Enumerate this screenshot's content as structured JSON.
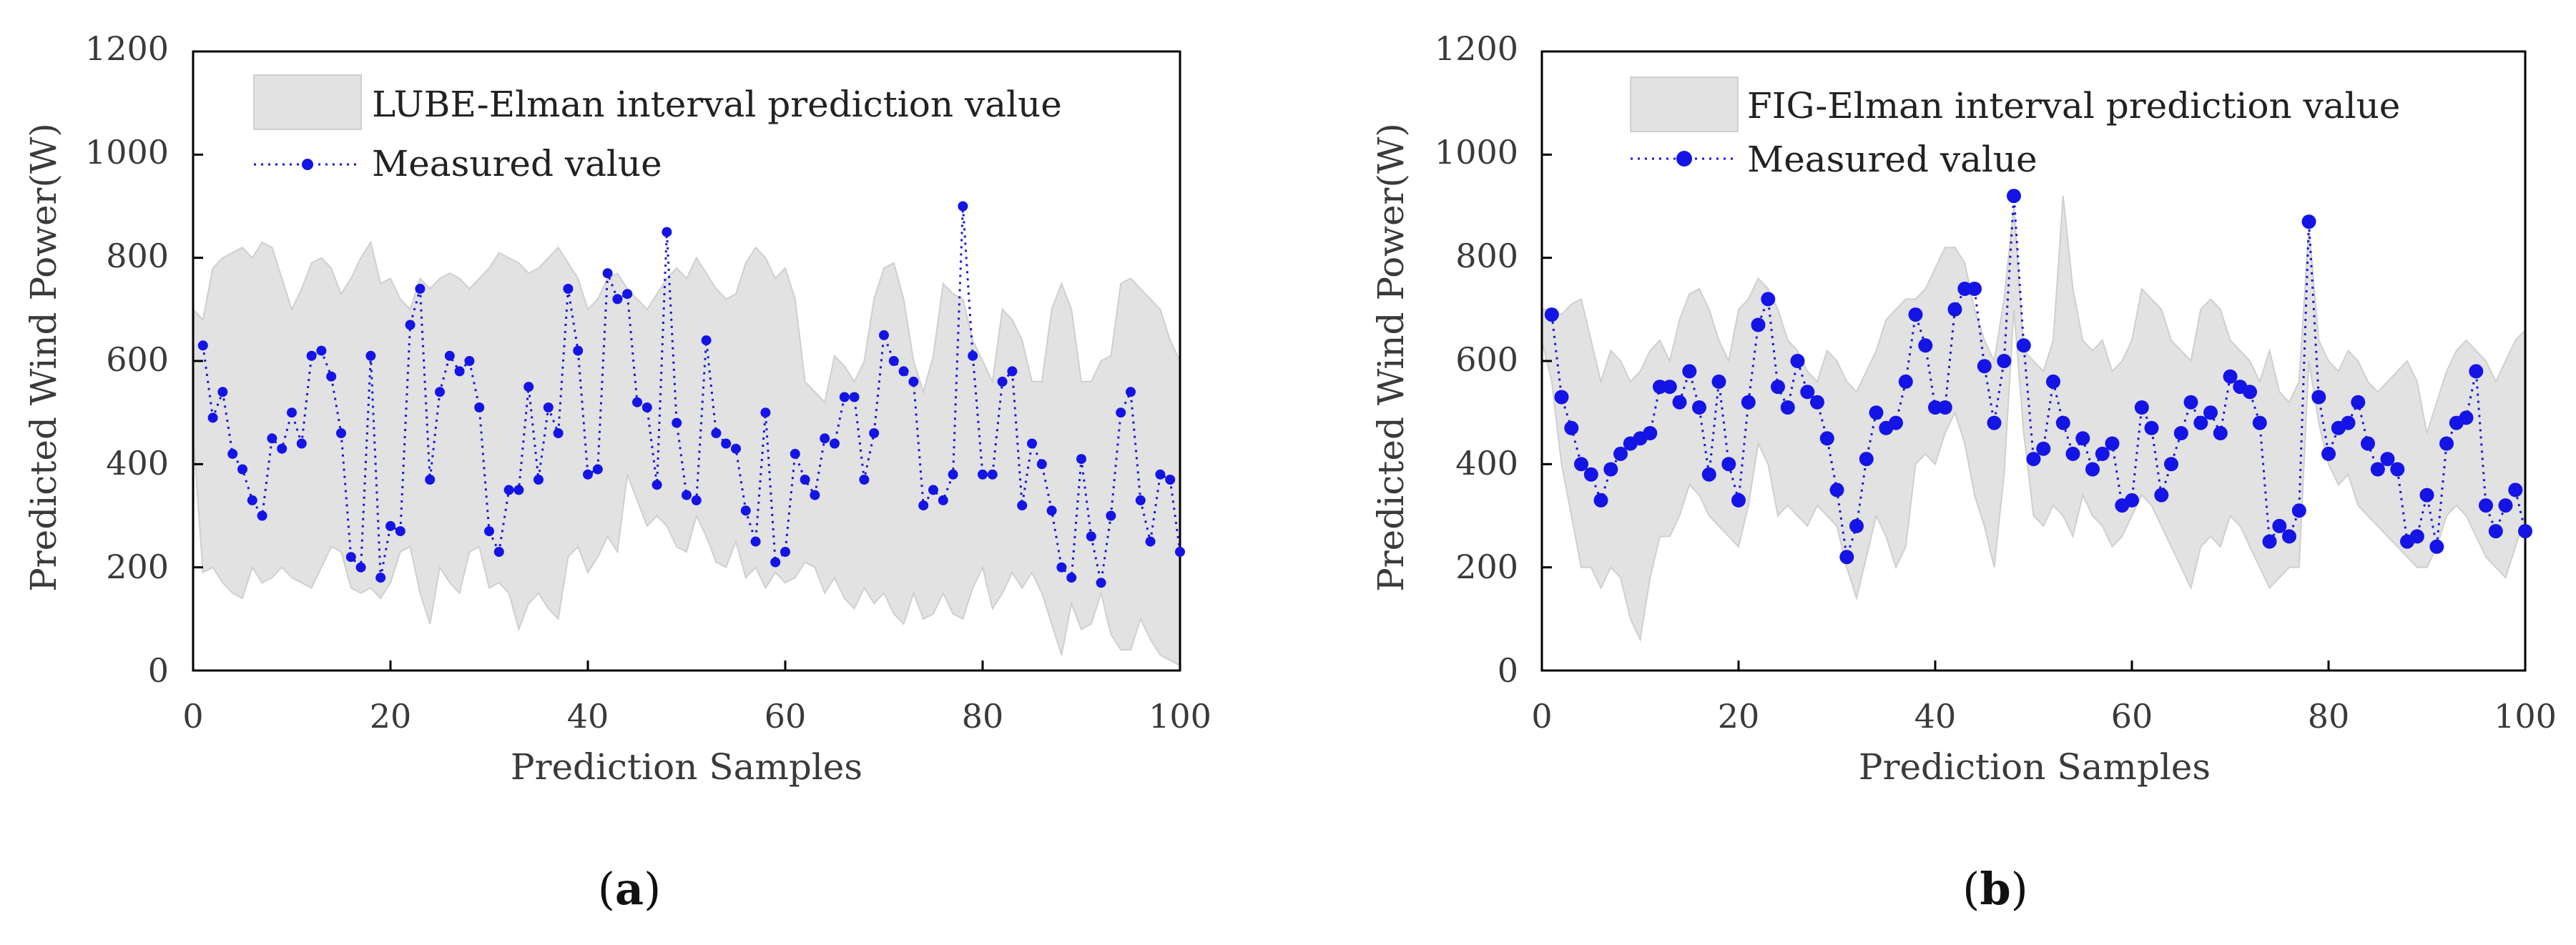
{
  "figure": {
    "panels": [
      {
        "id": "a",
        "label_open": "(",
        "label_letter": "a",
        "label_close": ")"
      },
      {
        "id": "b",
        "label_open": "(",
        "label_letter": "b",
        "label_close": ")"
      }
    ]
  },
  "colors": {
    "band": "#e2e2e2",
    "band_edge": "#cfcfcf",
    "measured": "#1414e6",
    "axis": "#000000"
  },
  "chart_data": [
    {
      "type": "area",
      "xlabel": "Prediction Samples",
      "ylabel": "Predicted Wind Power(W)",
      "xlim": [
        0,
        100
      ],
      "ylim": [
        0,
        1200
      ],
      "xticks": [
        0,
        20,
        40,
        60,
        80,
        100
      ],
      "yticks": [
        0,
        200,
        400,
        600,
        800,
        1000,
        1200
      ],
      "legend_position": "top",
      "series": [
        {
          "name": "LUBE-Elman interval prediction value",
          "kind": "band",
          "x": [
            0,
            1,
            2,
            3,
            4,
            5,
            6,
            7,
            8,
            9,
            10,
            11,
            12,
            13,
            14,
            15,
            16,
            17,
            18,
            19,
            20,
            21,
            22,
            23,
            24,
            25,
            26,
            27,
            28,
            29,
            30,
            31,
            32,
            33,
            34,
            35,
            36,
            37,
            38,
            39,
            40,
            41,
            42,
            43,
            44,
            45,
            46,
            47,
            48,
            49,
            50,
            51,
            52,
            53,
            54,
            55,
            56,
            57,
            58,
            59,
            60,
            61,
            62,
            63,
            64,
            65,
            66,
            67,
            68,
            69,
            70,
            71,
            72,
            73,
            74,
            75,
            76,
            77,
            78,
            79,
            80,
            81,
            82,
            83,
            84,
            85,
            86,
            87,
            88,
            89,
            90,
            91,
            92,
            93,
            94,
            95,
            96,
            97,
            98,
            99,
            100
          ],
          "upper": [
            700,
            680,
            780,
            800,
            810,
            820,
            800,
            830,
            820,
            760,
            700,
            740,
            790,
            800,
            780,
            730,
            760,
            800,
            830,
            750,
            760,
            720,
            700,
            760,
            740,
            760,
            770,
            760,
            740,
            760,
            780,
            810,
            800,
            790,
            770,
            780,
            800,
            820,
            790,
            760,
            700,
            720,
            760,
            770,
            740,
            720,
            700,
            730,
            760,
            780,
            760,
            800,
            770,
            740,
            720,
            730,
            790,
            820,
            800,
            760,
            780,
            720,
            560,
            540,
            520,
            610,
            590,
            560,
            600,
            720,
            780,
            790,
            720,
            600,
            540,
            610,
            750,
            730,
            720,
            640,
            600,
            560,
            700,
            680,
            640,
            560,
            560,
            700,
            750,
            700,
            560,
            560,
            600,
            610,
            750,
            760,
            740,
            720,
            700,
            640,
            600
          ],
          "lower": [
            460,
            190,
            200,
            170,
            150,
            140,
            200,
            170,
            180,
            200,
            180,
            170,
            160,
            200,
            240,
            230,
            160,
            150,
            160,
            140,
            170,
            230,
            240,
            150,
            90,
            200,
            170,
            150,
            230,
            240,
            160,
            170,
            150,
            80,
            130,
            150,
            120,
            100,
            220,
            240,
            190,
            220,
            260,
            230,
            380,
            330,
            280,
            300,
            280,
            240,
            230,
            300,
            260,
            210,
            200,
            250,
            180,
            200,
            160,
            190,
            170,
            180,
            210,
            200,
            150,
            180,
            140,
            120,
            160,
            130,
            150,
            110,
            90,
            150,
            100,
            110,
            150,
            110,
            100,
            160,
            200,
            120,
            150,
            190,
            160,
            190,
            150,
            90,
            30,
            130,
            80,
            90,
            150,
            70,
            40,
            40,
            100,
            60,
            30,
            20,
            10
          ]
        },
        {
          "name": "Measured value",
          "kind": "dotted-line-markers",
          "x": [
            1,
            2,
            3,
            4,
            5,
            6,
            7,
            8,
            9,
            10,
            11,
            12,
            13,
            14,
            15,
            16,
            17,
            18,
            19,
            20,
            21,
            22,
            23,
            24,
            25,
            26,
            27,
            28,
            29,
            30,
            31,
            32,
            33,
            34,
            35,
            36,
            37,
            38,
            39,
            40,
            41,
            42,
            43,
            44,
            45,
            46,
            47,
            48,
            49,
            50,
            51,
            52,
            53,
            54,
            55,
            56,
            57,
            58,
            59,
            60,
            61,
            62,
            63,
            64,
            65,
            66,
            67,
            68,
            69,
            70,
            71,
            72,
            73,
            74,
            75,
            76,
            77,
            78,
            79,
            80,
            81,
            82,
            83,
            84,
            85,
            86,
            87,
            88,
            89,
            90,
            91,
            92,
            93,
            94,
            95,
            96,
            97,
            98,
            99,
            100
          ],
          "values": [
            630,
            490,
            540,
            420,
            390,
            330,
            300,
            450,
            430,
            500,
            440,
            610,
            620,
            570,
            460,
            220,
            200,
            610,
            180,
            280,
            270,
            670,
            740,
            370,
            540,
            610,
            580,
            600,
            510,
            270,
            230,
            350,
            350,
            550,
            370,
            510,
            460,
            740,
            620,
            380,
            390,
            770,
            720,
            730,
            520,
            510,
            360,
            850,
            480,
            340,
            330,
            640,
            460,
            440,
            430,
            310,
            250,
            500,
            210,
            230,
            420,
            370,
            340,
            450,
            440,
            530,
            530,
            370,
            460,
            650,
            600,
            580,
            560,
            320,
            350,
            330,
            380,
            900,
            610,
            380,
            380,
            560,
            580,
            320,
            440,
            400,
            310,
            200,
            180,
            410,
            260,
            170,
            300,
            500,
            540,
            330,
            250,
            380,
            370,
            230
          ]
        }
      ]
    },
    {
      "type": "area",
      "xlabel": "Prediction Samples",
      "ylabel": "Predicted Wind Power(W)",
      "xlim": [
        0,
        100
      ],
      "ylim": [
        0,
        1200
      ],
      "xticks": [
        0,
        20,
        40,
        60,
        80,
        100
      ],
      "yticks": [
        0,
        200,
        400,
        600,
        800,
        1000,
        1200
      ],
      "legend_position": "top",
      "series": [
        {
          "name": "FIG-Elman interval prediction value",
          "kind": "band",
          "x": [
            0,
            1,
            2,
            3,
            4,
            5,
            6,
            7,
            8,
            9,
            10,
            11,
            12,
            13,
            14,
            15,
            16,
            17,
            18,
            19,
            20,
            21,
            22,
            23,
            24,
            25,
            26,
            27,
            28,
            29,
            30,
            31,
            32,
            33,
            34,
            35,
            36,
            37,
            38,
            39,
            40,
            41,
            42,
            43,
            44,
            45,
            46,
            47,
            48,
            49,
            50,
            51,
            52,
            53,
            54,
            55,
            56,
            57,
            58,
            59,
            60,
            61,
            62,
            63,
            64,
            65,
            66,
            67,
            68,
            69,
            70,
            71,
            72,
            73,
            74,
            75,
            76,
            77,
            78,
            79,
            80,
            81,
            82,
            83,
            84,
            85,
            86,
            87,
            88,
            89,
            90,
            91,
            92,
            93,
            94,
            95,
            96,
            97,
            98,
            99,
            100
          ],
          "upper": [
            700,
            700,
            690,
            710,
            720,
            640,
            560,
            620,
            600,
            560,
            580,
            620,
            640,
            600,
            680,
            730,
            740,
            700,
            640,
            600,
            700,
            720,
            760,
            740,
            700,
            640,
            620,
            580,
            560,
            620,
            600,
            560,
            540,
            580,
            620,
            680,
            700,
            720,
            720,
            740,
            780,
            820,
            820,
            790,
            700,
            640,
            600,
            720,
            900,
            620,
            600,
            580,
            640,
            920,
            740,
            640,
            620,
            640,
            580,
            600,
            640,
            740,
            720,
            700,
            640,
            620,
            600,
            700,
            720,
            700,
            640,
            620,
            600,
            560,
            620,
            540,
            520,
            560,
            860,
            640,
            600,
            580,
            620,
            600,
            560,
            540,
            560,
            580,
            600,
            560,
            460,
            520,
            580,
            620,
            640,
            620,
            600,
            560,
            600,
            640,
            660
          ],
          "lower": [
            640,
            560,
            400,
            300,
            200,
            200,
            160,
            200,
            180,
            100,
            60,
            180,
            260,
            260,
            300,
            360,
            340,
            300,
            280,
            260,
            240,
            320,
            440,
            400,
            300,
            320,
            300,
            280,
            320,
            300,
            280,
            200,
            140,
            220,
            300,
            260,
            200,
            240,
            400,
            420,
            400,
            460,
            500,
            440,
            340,
            280,
            200,
            380,
            700,
            460,
            300,
            280,
            320,
            300,
            260,
            340,
            300,
            280,
            240,
            260,
            300,
            340,
            320,
            280,
            240,
            200,
            160,
            240,
            260,
            240,
            300,
            280,
            240,
            200,
            160,
            180,
            200,
            200,
            600,
            480,
            400,
            360,
            380,
            320,
            300,
            280,
            260,
            240,
            220,
            200,
            200,
            240,
            300,
            320,
            300,
            260,
            220,
            200,
            180,
            240,
            300
          ]
        },
        {
          "name": "Measured value",
          "kind": "dotted-line-markers",
          "x": [
            1,
            2,
            3,
            4,
            5,
            6,
            7,
            8,
            9,
            10,
            11,
            12,
            13,
            14,
            15,
            16,
            17,
            18,
            19,
            20,
            21,
            22,
            23,
            24,
            25,
            26,
            27,
            28,
            29,
            30,
            31,
            32,
            33,
            34,
            35,
            36,
            37,
            38,
            39,
            40,
            41,
            42,
            43,
            44,
            45,
            46,
            47,
            48,
            49,
            50,
            51,
            52,
            53,
            54,
            55,
            56,
            57,
            58,
            59,
            60,
            61,
            62,
            63,
            64,
            65,
            66,
            67,
            68,
            69,
            70,
            71,
            72,
            73,
            74,
            75,
            76,
            77,
            78,
            79,
            80,
            81,
            82,
            83,
            84,
            85,
            86,
            87,
            88,
            89,
            90,
            91,
            92,
            93,
            94,
            95,
            96,
            97,
            98,
            99,
            100
          ],
          "values": [
            690,
            530,
            470,
            400,
            380,
            330,
            390,
            420,
            440,
            450,
            460,
            550,
            550,
            520,
            580,
            510,
            380,
            560,
            400,
            330,
            520,
            670,
            720,
            550,
            510,
            600,
            540,
            520,
            450,
            350,
            220,
            280,
            410,
            500,
            470,
            480,
            560,
            690,
            630,
            510,
            510,
            700,
            740,
            740,
            590,
            480,
            600,
            920,
            630,
            410,
            430,
            560,
            480,
            420,
            450,
            390,
            420,
            440,
            320,
            330,
            510,
            470,
            340,
            400,
            460,
            520,
            480,
            500,
            460,
            570,
            550,
            540,
            480,
            250,
            280,
            260,
            310,
            870,
            530,
            420,
            470,
            480,
            520,
            440,
            390,
            410,
            390,
            250,
            260,
            340,
            240,
            440,
            480,
            490,
            580,
            320,
            270,
            320,
            350,
            270
          ]
        }
      ]
    }
  ]
}
